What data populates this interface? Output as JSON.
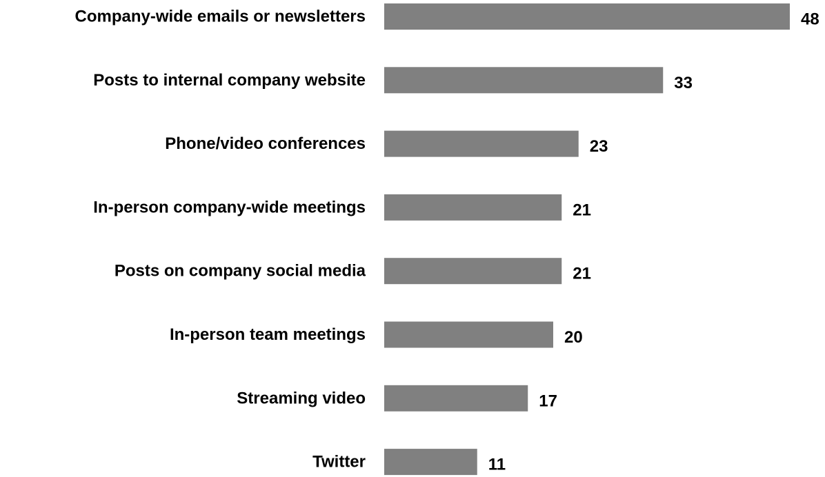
{
  "chart_data": {
    "type": "bar",
    "orientation": "horizontal",
    "categories": [
      "Company-wide emails or newsletters",
      "Posts to internal company website",
      "Phone/video conferences",
      "In-person company-wide meetings",
      "Posts on company social media",
      "In-person team meetings",
      "Streaming video",
      "Twitter"
    ],
    "values": [
      48,
      33,
      23,
      21,
      21,
      20,
      17,
      11
    ],
    "data_labels": [
      "48",
      "33",
      "23",
      "21",
      "21",
      "20",
      "17",
      "11"
    ],
    "bar_color": "#808080",
    "title": "",
    "xlabel": "",
    "ylabel": "",
    "xlim": [
      0,
      48
    ],
    "grid": false,
    "legend": "none"
  }
}
